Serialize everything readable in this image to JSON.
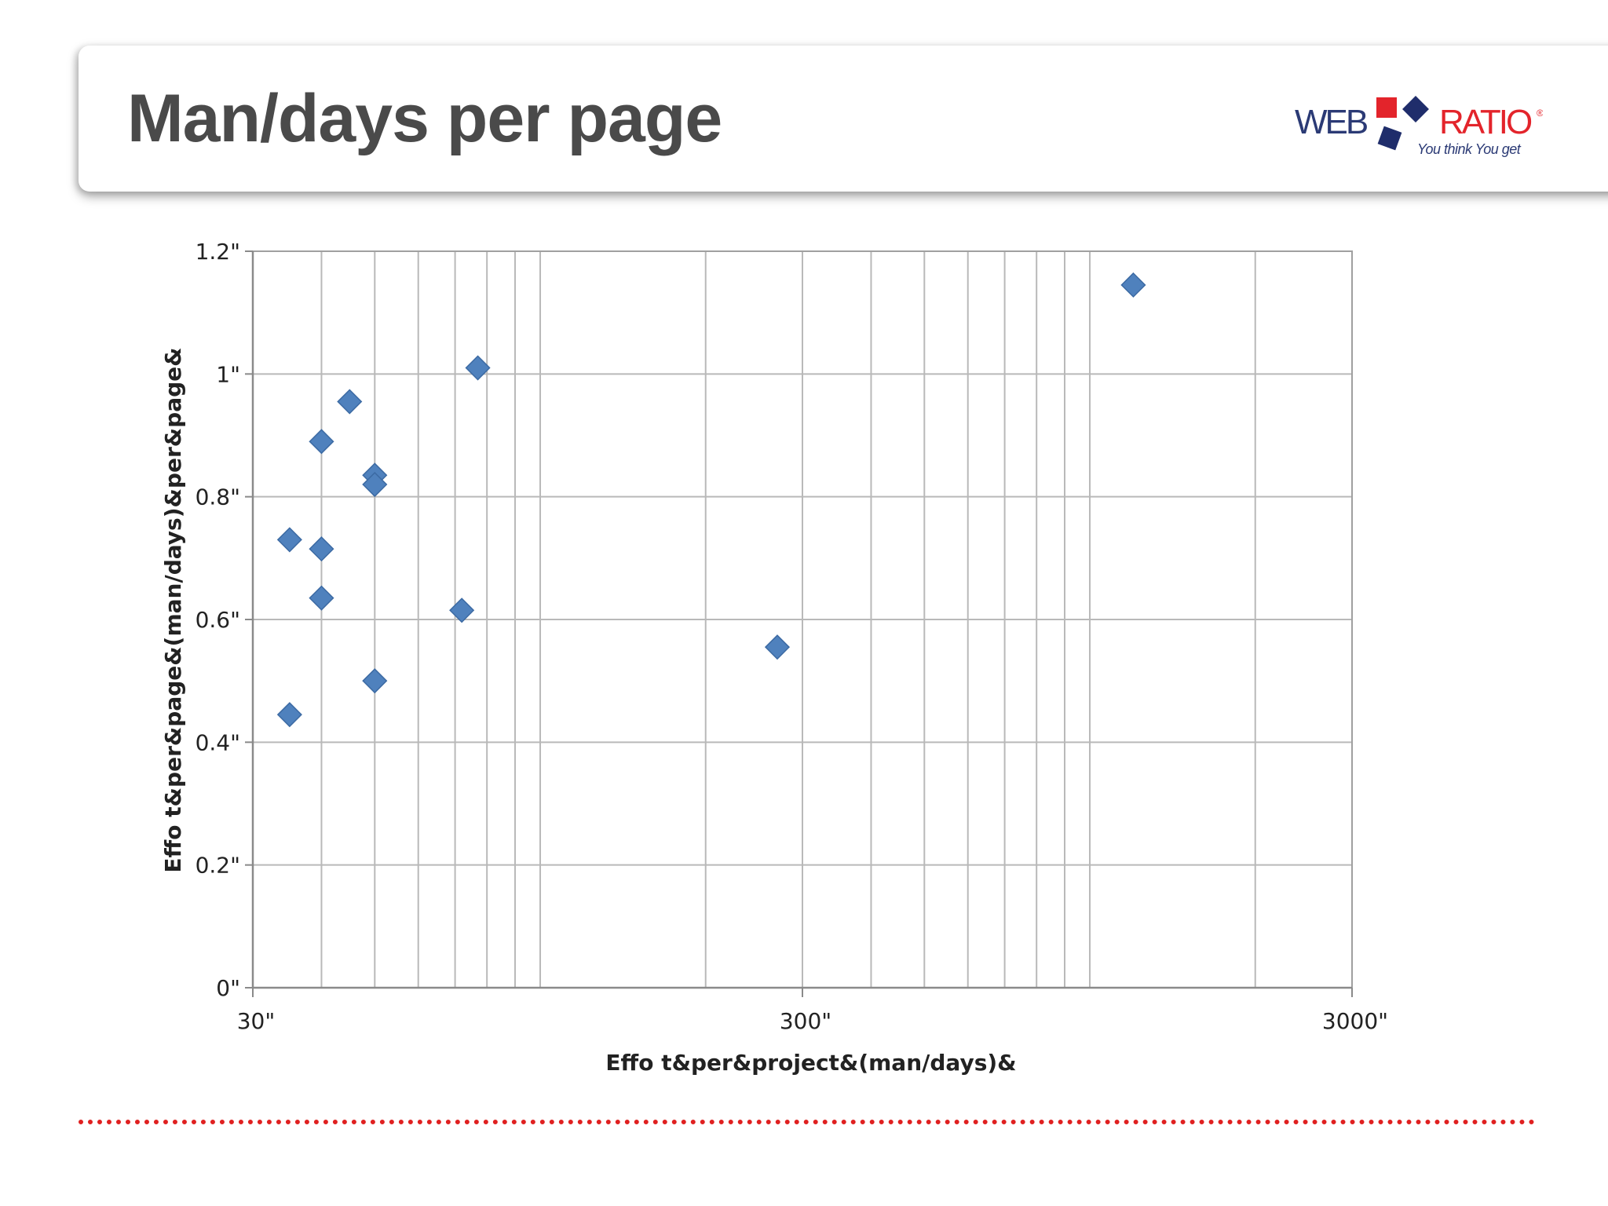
{
  "slide": {
    "title": "Man/days per page"
  },
  "logo": {
    "word_left": "WEB",
    "word_right": "RATIO",
    "registered": "®",
    "tagline": "You think You get",
    "colors": {
      "text": "#2b3a75",
      "accent_red": "#e3242b",
      "accent_navy": "#1f2d6b"
    }
  },
  "footer": {
    "line_color": "#e02020",
    "style": "dotted"
  },
  "chart_data": {
    "type": "scatter",
    "x_scale": "log",
    "xlim": [
      30,
      3000
    ],
    "ylim": [
      0,
      1.2
    ],
    "xticks": [
      30,
      300,
      3000
    ],
    "xtick_labels": [
      "30\"",
      "300\"",
      "3000\""
    ],
    "yticks": [
      0,
      0.2,
      0.4,
      0.6,
      0.8,
      1.0,
      1.2
    ],
    "ytick_labels": [
      "0\"",
      "0.2\"",
      "0.4\"",
      "0.6\"",
      "0.8\"",
      "1\"",
      "1.2\""
    ],
    "xlabel": "Effo t&per&project&(man/days)&",
    "ylabel": "Effo t&per&page&(man/days)&per&page&",
    "grid": true,
    "marker": "diamond",
    "marker_color": "#4f81bd",
    "points": [
      {
        "x": 35,
        "y": 0.73
      },
      {
        "x": 35,
        "y": 0.445
      },
      {
        "x": 40,
        "y": 0.89
      },
      {
        "x": 40,
        "y": 0.715
      },
      {
        "x": 40,
        "y": 0.635
      },
      {
        "x": 45,
        "y": 0.955
      },
      {
        "x": 50,
        "y": 0.835
      },
      {
        "x": 50,
        "y": 0.82
      },
      {
        "x": 50,
        "y": 0.5
      },
      {
        "x": 72,
        "y": 0.615
      },
      {
        "x": 77,
        "y": 1.01
      },
      {
        "x": 270,
        "y": 0.555
      },
      {
        "x": 1200,
        "y": 1.145
      }
    ]
  }
}
